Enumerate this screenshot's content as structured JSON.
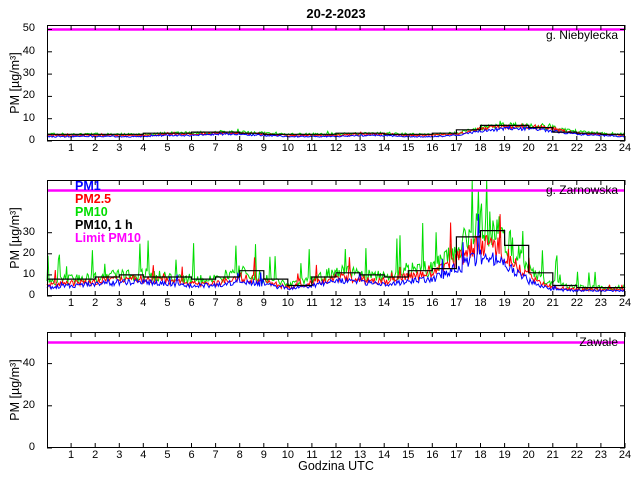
{
  "title": "20-2-2023",
  "xlabel": "Godzina UTC",
  "ylabel": "PM [µg/m³]",
  "colors": {
    "limit": "#ff00ff",
    "pm1": "#0000ff",
    "pm25": "#ff0000",
    "pm10": "#00dd00",
    "pm10h": "#000000"
  },
  "legend": [
    {
      "label": "PM1",
      "color": "#0000ff"
    },
    {
      "label": "PM2.5",
      "color": "#ff0000"
    },
    {
      "label": "PM10",
      "color": "#00dd00"
    },
    {
      "label": "PM10, 1 h",
      "color": "#000000"
    },
    {
      "label": "Limit PM10",
      "color": "#ff00ff"
    }
  ],
  "chart_data": [
    {
      "type": "line",
      "station": "g. Niebylecka",
      "ylim": [
        0,
        52
      ],
      "yticks": [
        0,
        10,
        20,
        30,
        40,
        50
      ],
      "xlim": [
        0,
        24
      ],
      "xticks": [
        1,
        2,
        3,
        4,
        5,
        6,
        7,
        8,
        9,
        10,
        11,
        12,
        13,
        14,
        15,
        16,
        17,
        18,
        19,
        20,
        21,
        22,
        23,
        24
      ],
      "limit_value": 50,
      "series": [
        {
          "name": "PM10",
          "color": "#00dd00",
          "noise": 0.18,
          "spike": 0.35,
          "spike_p": 0.04,
          "hourly": [
            3,
            3,
            3,
            3,
            3,
            3.5,
            3.5,
            4,
            4,
            3.5,
            3,
            3,
            3,
            3.5,
            3.5,
            3,
            3,
            3.5,
            6,
            7,
            7,
            6,
            4,
            3.5,
            3
          ]
        },
        {
          "name": "PM2.5",
          "color": "#ff0000",
          "noise": 0.15,
          "spike": 0.25,
          "spike_p": 0.03,
          "hourly": [
            2.5,
            2.5,
            2.5,
            2.5,
            2.5,
            3,
            3,
            3.5,
            3.5,
            3,
            2.5,
            2.5,
            2.5,
            3,
            3,
            2.5,
            2.5,
            3,
            5.5,
            6.5,
            6.5,
            5.5,
            3.5,
            3,
            2.5
          ]
        },
        {
          "name": "PM1",
          "color": "#0000ff",
          "noise": 0.14,
          "spike": 0.2,
          "spike_p": 0.03,
          "hourly": [
            2,
            2,
            2,
            2,
            2,
            2.5,
            2.5,
            3,
            3,
            2.5,
            2,
            2,
            2,
            2.5,
            2.5,
            2,
            2,
            2.5,
            4.5,
            5.5,
            5.5,
            4.5,
            3,
            2.5,
            2
          ]
        },
        {
          "name": "PM10, 1 h",
          "color": "#000000",
          "step": true,
          "hourly": [
            3,
            3,
            3,
            3,
            3.5,
            3.5,
            4,
            4,
            3.5,
            3,
            3,
            3,
            3.5,
            3.5,
            3,
            3,
            3.5,
            5,
            7,
            7,
            6,
            4,
            3.5,
            3
          ]
        }
      ]
    },
    {
      "type": "line",
      "station": "g. Zarnowska",
      "ylim": [
        0,
        55
      ],
      "yticks": [
        0,
        10,
        20,
        30
      ],
      "xlim": [
        0,
        24
      ],
      "xticks": [
        1,
        2,
        3,
        4,
        5,
        6,
        7,
        8,
        9,
        10,
        11,
        12,
        13,
        14,
        15,
        16,
        17,
        18,
        19,
        20,
        21,
        22,
        23,
        24
      ],
      "limit_value": 50,
      "series": [
        {
          "name": "PM10",
          "color": "#00dd00",
          "noise": 0.3,
          "spike": 2.2,
          "spike_p": 0.07,
          "hourly": [
            7,
            8,
            9,
            10,
            10,
            9,
            8,
            8,
            12,
            9,
            5,
            8,
            12,
            11,
            9,
            12,
            13,
            22,
            34,
            28,
            12,
            6,
            4,
            4,
            4
          ]
        },
        {
          "name": "PM2.5",
          "color": "#ff0000",
          "noise": 0.25,
          "spike": 1.4,
          "spike_p": 0.05,
          "hourly": [
            5,
            6,
            7,
            8,
            8,
            7,
            6,
            6,
            9,
            7,
            4,
            6,
            9,
            8,
            7,
            9,
            10,
            17,
            26,
            21,
            9,
            4,
            3,
            3,
            3
          ]
        },
        {
          "name": "PM1",
          "color": "#0000ff",
          "noise": 0.22,
          "spike": 0.9,
          "spike_p": 0.04,
          "hourly": [
            4,
            5,
            5.5,
            6.5,
            6.5,
            6,
            5,
            5,
            7,
            5.5,
            3.5,
            5,
            7,
            6.5,
            5.5,
            7,
            8,
            13,
            19,
            15,
            7,
            3,
            2.5,
            2.5,
            2.5
          ]
        },
        {
          "name": "PM10, 1 h",
          "color": "#000000",
          "step": true,
          "hourly": [
            8,
            8,
            9,
            10,
            9,
            9,
            8,
            9,
            12,
            8,
            5,
            9,
            11,
            10,
            9,
            12,
            13,
            28,
            31,
            24,
            11,
            5,
            4,
            4
          ]
        }
      ]
    },
    {
      "type": "line",
      "station": "Zawale",
      "ylim": [
        0,
        55
      ],
      "yticks": [
        0,
        20,
        40
      ],
      "xlim": [
        0,
        24
      ],
      "xticks": [
        1,
        2,
        3,
        4,
        5,
        6,
        7,
        8,
        9,
        10,
        11,
        12,
        13,
        14,
        15,
        16,
        17,
        18,
        19,
        20,
        21,
        22,
        23,
        24
      ],
      "limit_value": 50,
      "series": []
    }
  ]
}
